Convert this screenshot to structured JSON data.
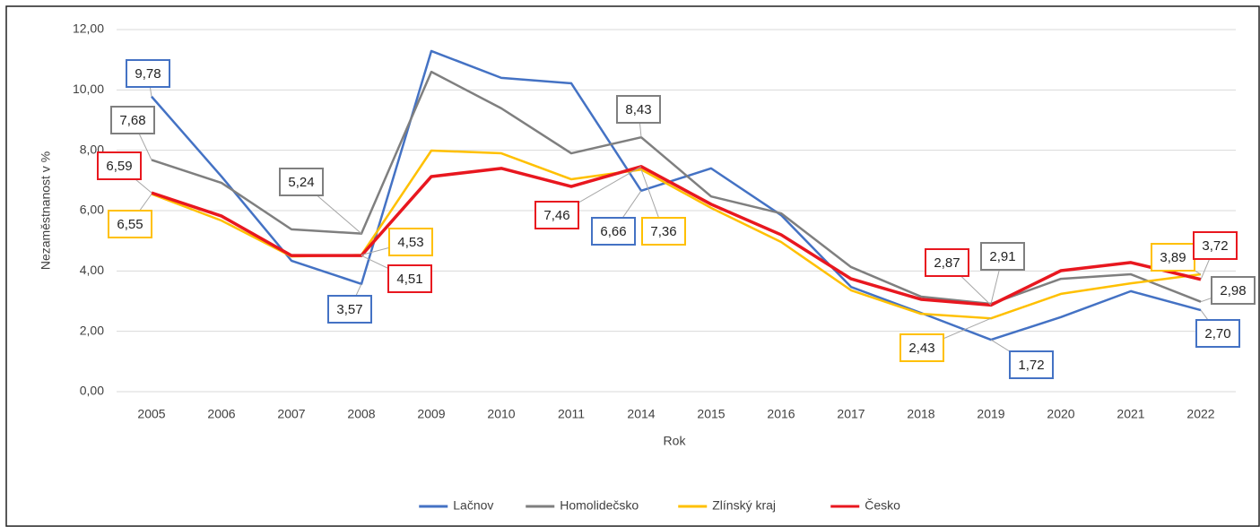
{
  "chart_data": {
    "type": "line",
    "categories": [
      "2005",
      "2006",
      "2007",
      "2008",
      "2009",
      "2010",
      "2011",
      "2014",
      "2015",
      "2016",
      "2017",
      "2018",
      "2019",
      "2020",
      "2021",
      "2022"
    ],
    "x_label": "Rok",
    "y_label": "Nezaměstnanost v %",
    "ylim": [
      0,
      12
    ],
    "yticks": [
      {
        "value": 0,
        "label": "0,00"
      },
      {
        "value": 2,
        "label": "2,00"
      },
      {
        "value": 4,
        "label": "4,00"
      },
      {
        "value": 6,
        "label": "6,00"
      },
      {
        "value": 8,
        "label": "8,00"
      },
      {
        "value": 10,
        "label": "10,00"
      },
      {
        "value": 12,
        "label": "12,00"
      }
    ],
    "grid": true,
    "legend": "bottom",
    "series": [
      {
        "name": "Lačnov",
        "color": "#4472c4",
        "values": [
          9.78,
          7.13,
          4.34,
          3.57,
          11.29,
          10.4,
          10.22,
          6.66,
          7.4,
          5.85,
          3.47,
          2.61,
          1.72,
          2.47,
          3.33,
          2.7
        ],
        "value_labels": [
          "9,78",
          null,
          null,
          "3,57",
          null,
          null,
          null,
          "6,66",
          null,
          null,
          null,
          null,
          "1,72",
          null,
          null,
          "2,70"
        ]
      },
      {
        "name": "Homolidečsko",
        "color": "#7f7f7f",
        "values": [
          7.68,
          6.92,
          5.38,
          5.24,
          10.6,
          9.39,
          7.9,
          8.43,
          6.47,
          5.91,
          4.13,
          3.15,
          2.91,
          3.74,
          3.89,
          2.98
        ],
        "value_labels": [
          "7,68",
          null,
          null,
          "5,24",
          null,
          null,
          null,
          "8,43",
          null,
          null,
          null,
          null,
          "2,91",
          null,
          null,
          "2,98"
        ]
      },
      {
        "name": "Zlínský kraj",
        "color": "#ffc000",
        "values": [
          6.55,
          5.67,
          4.48,
          4.53,
          7.99,
          7.9,
          7.04,
          7.36,
          6.09,
          4.96,
          3.36,
          2.58,
          2.43,
          3.24,
          3.59,
          3.89
        ],
        "value_labels": [
          "6,55",
          null,
          null,
          "4,53",
          null,
          null,
          null,
          "7,36",
          null,
          null,
          null,
          null,
          "2,43",
          null,
          null,
          "3,89"
        ]
      },
      {
        "name": "Česko",
        "color": "#e8171f",
        "values": [
          6.59,
          5.82,
          4.51,
          4.51,
          7.13,
          7.4,
          6.8,
          7.46,
          6.21,
          5.2,
          3.74,
          3.06,
          2.87,
          4.01,
          4.28,
          3.72
        ],
        "value_labels": [
          "6,59",
          null,
          null,
          "4,51",
          null,
          null,
          null,
          "7,46",
          null,
          null,
          null,
          null,
          "2,87",
          null,
          null,
          "3,72"
        ]
      }
    ]
  }
}
